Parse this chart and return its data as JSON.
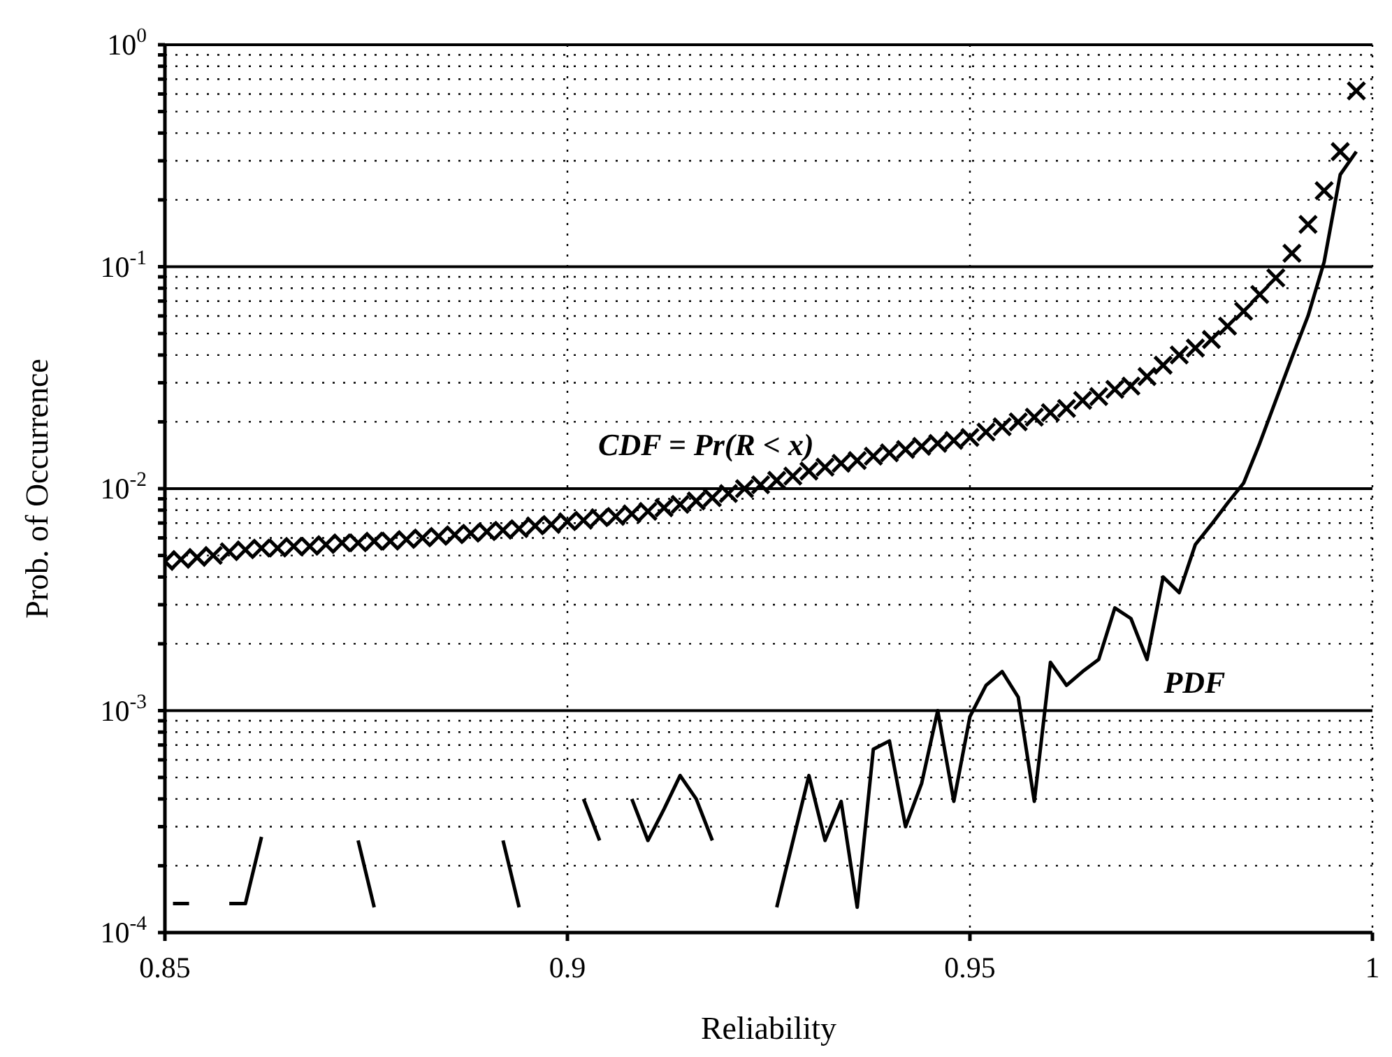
{
  "chart_data": {
    "type": "scatter",
    "xlabel": "Reliability",
    "ylabel": "Prob. of Occurrence",
    "log": "y",
    "grid": true,
    "xlim": [
      0.85,
      1
    ],
    "xticks": [
      0.85,
      0.9,
      0.95,
      1
    ],
    "ylim": [
      0.0001,
      1
    ],
    "yticks": [
      {
        "value": 0.0001,
        "label": "10$^{-4}$"
      },
      {
        "value": 0.0002,
        "label": null
      },
      {
        "value": 0.0003,
        "label": null
      },
      {
        "value": 0.0004,
        "label": null
      },
      {
        "value": 0.0005,
        "label": null
      },
      {
        "value": 0.0006,
        "label": null
      },
      {
        "value": 0.0007,
        "label": null
      },
      {
        "value": 0.0008,
        "label": null
      },
      {
        "value": 0.0009,
        "label": null
      },
      {
        "value": 0.001,
        "label": "10$^{-3}$"
      },
      {
        "value": 0.002,
        "label": null
      },
      {
        "value": 0.003,
        "label": null
      },
      {
        "value": 0.004,
        "label": null
      },
      {
        "value": 0.005,
        "label": null
      },
      {
        "value": 0.006,
        "label": null
      },
      {
        "value": 0.007,
        "label": null
      },
      {
        "value": 0.008,
        "label": null
      },
      {
        "value": 0.009,
        "label": null
      },
      {
        "value": 0.01,
        "label": "10$^{-2}$"
      },
      {
        "value": 0.02,
        "label": null
      },
      {
        "value": 0.03,
        "label": null
      },
      {
        "value": 0.04,
        "label": null
      },
      {
        "value": 0.05,
        "label": null
      },
      {
        "value": 0.06,
        "label": null
      },
      {
        "value": 0.07,
        "label": null
      },
      {
        "value": 0.08,
        "label": null
      },
      {
        "value": 0.09,
        "label": null
      },
      {
        "value": 0.1,
        "label": "10$^{-1}$"
      },
      {
        "value": 0.2,
        "label": null
      },
      {
        "value": 0.3,
        "label": null
      },
      {
        "value": 0.4,
        "label": null
      },
      {
        "value": 0.5,
        "label": null
      },
      {
        "value": 0.6,
        "label": null
      },
      {
        "value": 0.7,
        "label": null
      },
      {
        "value": 0.8,
        "label": null
      },
      {
        "value": 0.9,
        "label": null
      },
      {
        "value": 1,
        "label": "10$^{0}$"
      }
    ],
    "series": [
      {
        "name": "CDF = Pr(R < x)",
        "marker": "cross",
        "color": "#000000",
        "x": [
          0.85,
          0.852,
          0.854,
          0.856,
          0.858,
          0.86,
          0.862,
          0.864,
          0.866,
          0.868,
          0.87,
          0.872,
          0.874,
          0.876,
          0.878,
          0.88,
          0.882,
          0.884,
          0.886,
          0.888,
          0.89,
          0.892,
          0.894,
          0.896,
          0.898,
          0.9,
          0.902,
          0.904,
          0.906,
          0.908,
          0.91,
          0.912,
          0.914,
          0.916,
          0.918,
          0.92,
          0.922,
          0.924,
          0.926,
          0.928,
          0.93,
          0.932,
          0.934,
          0.936,
          0.938,
          0.94,
          0.942,
          0.944,
          0.946,
          0.948,
          0.95,
          0.952,
          0.954,
          0.956,
          0.958,
          0.96,
          0.962,
          0.964,
          0.966,
          0.968,
          0.97,
          0.972,
          0.974,
          0.976,
          0.978,
          0.98,
          0.982,
          0.984,
          0.986,
          0.988,
          0.99,
          0.992,
          0.994,
          0.996,
          0.998
        ],
        "values": [
          0.0047,
          0.0048,
          0.0049,
          0.005,
          0.0052,
          0.0053,
          0.0054,
          0.0054,
          0.0055,
          0.0055,
          0.0056,
          0.0057,
          0.0057,
          0.0058,
          0.0058,
          0.0059,
          0.006,
          0.0061,
          0.0062,
          0.0063,
          0.0064,
          0.0065,
          0.0066,
          0.0068,
          0.0069,
          0.0071,
          0.0072,
          0.0074,
          0.0075,
          0.0077,
          0.0079,
          0.0082,
          0.0085,
          0.0088,
          0.0091,
          0.0095,
          0.01,
          0.0104,
          0.0109,
          0.0114,
          0.012,
          0.0125,
          0.013,
          0.0134,
          0.014,
          0.0145,
          0.015,
          0.0155,
          0.016,
          0.0165,
          0.017,
          0.018,
          0.019,
          0.02,
          0.021,
          0.022,
          0.023,
          0.025,
          0.026,
          0.028,
          0.029,
          0.032,
          0.036,
          0.04,
          0.043,
          0.047,
          0.054,
          0.063,
          0.075,
          0.089,
          0.115,
          0.155,
          0.22,
          0.33,
          0.62
        ]
      },
      {
        "name": "PDF",
        "type": "line",
        "line_style": "solid",
        "color": "#000000",
        "x": [
          0.851,
          0.853,
          0.855,
          0.858,
          0.86,
          0.862,
          0.864,
          0.874,
          0.876,
          0.878,
          0.892,
          0.894,
          0.896,
          0.902,
          0.904,
          0.906,
          0.908,
          0.91,
          0.912,
          0.914,
          0.916,
          0.918,
          0.92,
          0.926,
          0.93,
          0.932,
          0.934,
          0.936,
          0.938,
          0.94,
          0.942,
          0.944,
          0.946,
          0.948,
          0.95,
          0.952,
          0.954,
          0.956,
          0.958,
          0.96,
          0.962,
          0.964,
          0.966,
          0.968,
          0.97,
          0.972,
          0.974,
          0.976,
          0.978,
          0.98,
          0.982,
          0.984,
          0.986,
          0.988,
          0.99,
          0.992,
          0.994,
          0.996,
          0.998
        ],
        "values": [
          0.000135,
          0.000135,
          null,
          0.000135,
          0.000135,
          0.00027,
          null,
          0.00026,
          0.00013,
          null,
          0.00026,
          0.00013,
          null,
          0.0004,
          0.00026,
          null,
          0.0004,
          0.00026,
          0.00036,
          0.00051,
          0.0004,
          0.00026,
          null,
          0.00013,
          0.00051,
          0.00026,
          0.00039,
          0.00013,
          0.00067,
          0.00073,
          0.0003,
          0.00047,
          0.001,
          0.00039,
          0.00094,
          0.0013,
          0.0015,
          0.00115,
          0.00039,
          0.00165,
          0.0013,
          0.0015,
          0.0017,
          0.0029,
          0.0026,
          0.0017,
          0.004,
          0.0034,
          0.0056,
          0.0069,
          0.0086,
          0.0106,
          0.016,
          0.025,
          0.039,
          0.06,
          0.105,
          0.26,
          0.33
        ]
      }
    ]
  }
}
